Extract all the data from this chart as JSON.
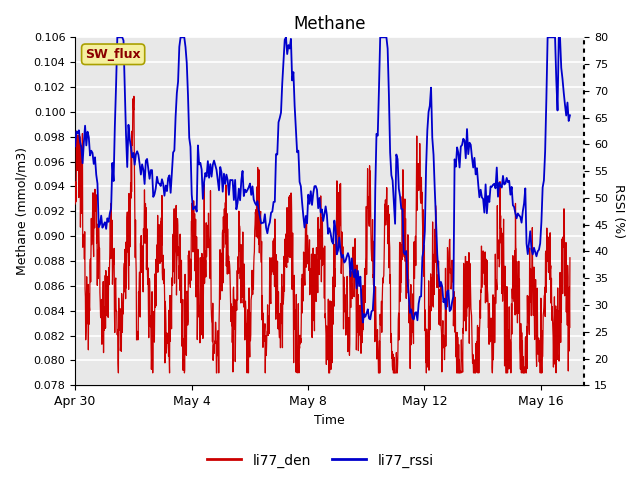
{
  "title": "Methane",
  "xlabel": "Time",
  "ylabel_left": "Methane (mmol/m3)",
  "ylabel_right": "RSSI (%)",
  "ylim_left": [
    0.078,
    0.106
  ],
  "ylim_right": [
    15,
    80
  ],
  "yticks_left": [
    0.078,
    0.08,
    0.082,
    0.084,
    0.086,
    0.088,
    0.09,
    0.092,
    0.094,
    0.096,
    0.098,
    0.1,
    0.102,
    0.104,
    0.106
  ],
  "yticks_right": [
    15,
    20,
    25,
    30,
    35,
    40,
    45,
    50,
    55,
    60,
    65,
    70,
    75,
    80
  ],
  "xlim_days": [
    0,
    17.5
  ],
  "xtick_positions": [
    0,
    4,
    8,
    12,
    16
  ],
  "xtick_labels": [
    "Apr 30",
    "May 4",
    "May 8",
    "May 12",
    "May 16"
  ],
  "legend_labels": [
    "li77_den",
    "li77_rssi"
  ],
  "line_color_red": "#cc0000",
  "line_color_blue": "#0000cc",
  "SW_flux_label": "SW_flux",
  "plot_bg_color": "#e8e8e8",
  "grid_color": "#ffffff",
  "fig_bg_color": "#ffffff"
}
